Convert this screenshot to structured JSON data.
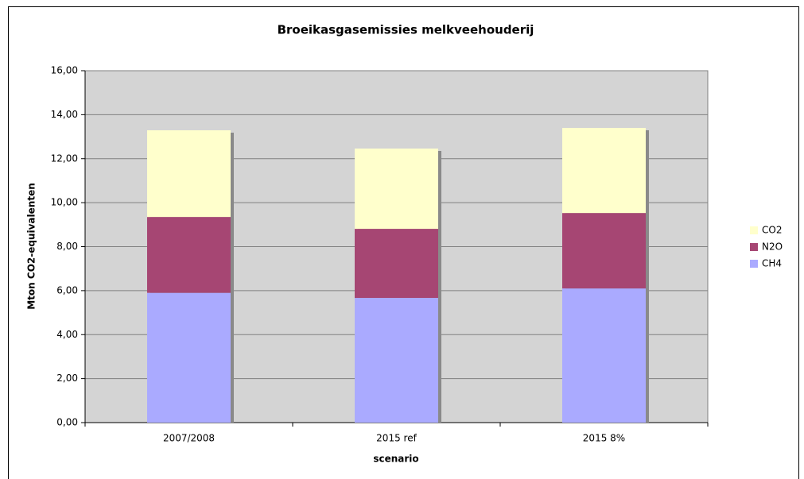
{
  "chart_data": {
    "type": "stacked_bar",
    "title": "Broeikasgasemissies melkveehouderij",
    "x_label": "scenario",
    "y_label": "Mton CO2-equivalenten",
    "categories": [
      "2007/2008",
      "2015 ref",
      "2015 8%"
    ],
    "series": [
      {
        "name": "CH4",
        "color": "#aaaaff",
        "values": [
          5.9,
          5.67,
          6.1
        ]
      },
      {
        "name": "N2O",
        "color": "#a64673",
        "values": [
          3.45,
          3.14,
          3.43
        ]
      },
      {
        "name": "CO2",
        "color": "#ffffcc",
        "values": [
          3.94,
          3.65,
          3.87
        ]
      }
    ],
    "ylim": [
      0,
      16
    ],
    "yticks": [
      {
        "value": 0,
        "label": "0,00"
      },
      {
        "value": 2,
        "label": "2,00"
      },
      {
        "value": 4,
        "label": "4,00"
      },
      {
        "value": 6,
        "label": "6,00"
      },
      {
        "value": 8,
        "label": "8,00"
      },
      {
        "value": 10,
        "label": "10,00"
      },
      {
        "value": 12,
        "label": "12,00"
      },
      {
        "value": 14,
        "label": "14,00"
      },
      {
        "value": 16,
        "label": "16,00"
      }
    ],
    "grid": true,
    "legend": "right"
  }
}
